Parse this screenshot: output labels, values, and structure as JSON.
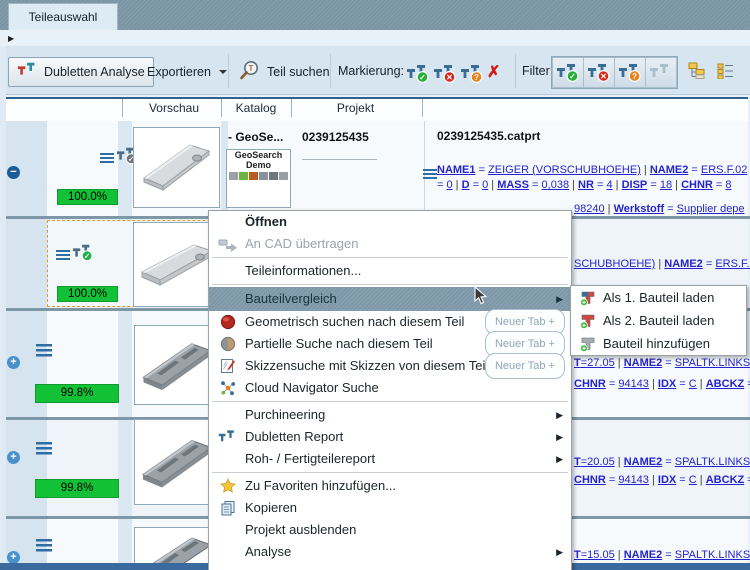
{
  "window": {
    "tab_title": "Teileauswahl"
  },
  "colors": {
    "accent_steel": "#7c95a5",
    "badge_green": "#12c135",
    "link_blue": "#2424cc",
    "selection_orange": "#df9a33"
  },
  "toolbar": {
    "dubletten_analyse_label": "Dubletten Analyse",
    "exportieren_label": "Exportieren",
    "teil_suchen_label": "Teil suchen",
    "markierung_label": "Markierung:",
    "filter_label": "Filter:",
    "clear_mark_symbol": "✗",
    "mark_buttons": [
      {
        "name": "mark-accepted-icon",
        "symbol": "✓",
        "color": "#27ae38"
      },
      {
        "name": "mark-rejected-icon",
        "symbol": "✕",
        "color": "#d5281e"
      },
      {
        "name": "mark-question-icon",
        "symbol": "?",
        "color": "#e8821e"
      }
    ],
    "filter_buttons": [
      {
        "name": "filter-accepted-button",
        "symbol": "✓",
        "color": "#27ae38",
        "disabled": false
      },
      {
        "name": "filter-rejected-button",
        "symbol": "✕",
        "color": "#d5281e",
        "disabled": false
      },
      {
        "name": "filter-question-button",
        "symbol": "?",
        "color": "#e8821e",
        "disabled": false
      },
      {
        "name": "filter-all-button",
        "symbol": "",
        "color": "",
        "disabled": true
      }
    ]
  },
  "table": {
    "headers": [
      "Vorschau",
      "Katalog",
      "Projekt"
    ]
  },
  "rows": [
    {
      "match": "100.0%",
      "katalog": "- GeoSe...",
      "katalog_card_line1": "GeoSearch",
      "katalog_card_line2": "Demo",
      "projekt": "0239125435",
      "file": "0239125435.catprt",
      "line1": [
        {
          "t": "NAME1",
          "b": 1,
          "u": 1
        },
        {
          "t": " = "
        },
        {
          "t": "ZEIGER (VORSCHUBHOEHE)",
          "u": 1
        },
        {
          "t": " | ",
          "d": 1
        },
        {
          "t": "NAME2",
          "b": 1,
          "u": 1
        },
        {
          "t": " = "
        },
        {
          "t": "ERS.F.02",
          "u": 1
        }
      ],
      "line2": [
        {
          "t": "= "
        },
        {
          "t": "0",
          "u": 1
        },
        {
          "t": " | ",
          "d": 1
        },
        {
          "t": "D",
          "b": 1,
          "u": 1
        },
        {
          "t": " = "
        },
        {
          "t": "0",
          "u": 1
        },
        {
          "t": " | ",
          "d": 1
        },
        {
          "t": "MASS",
          "b": 1,
          "u": 1
        },
        {
          "t": " = "
        },
        {
          "t": "0,038",
          "u": 1
        },
        {
          "t": " | ",
          "d": 1
        },
        {
          "t": "NR",
          "b": 1,
          "u": 1
        },
        {
          "t": " = "
        },
        {
          "t": "4",
          "u": 1
        },
        {
          "t": " | ",
          "d": 1
        },
        {
          "t": "DISP",
          "b": 1,
          "u": 1
        },
        {
          "t": " = "
        },
        {
          "t": "18",
          "u": 1
        },
        {
          "t": " | ",
          "d": 1
        },
        {
          "t": "CHNR",
          "b": 1,
          "u": 1
        },
        {
          "t": " = "
        },
        {
          "t": "8",
          "u": 1
        }
      ],
      "line3": [
        {
          "t": "98240",
          "u": 1
        },
        {
          "t": " | ",
          "d": 1
        },
        {
          "t": "Werkstoff",
          "b": 1,
          "u": 1
        },
        {
          "t": " = "
        },
        {
          "t": "Supplier depe",
          "u": 1
        }
      ]
    },
    {
      "match": "100.0%",
      "line1": [
        {
          "t": "SCHUBHOEHE)",
          "u": 1
        },
        {
          "t": " | ",
          "d": 1
        },
        {
          "t": "NAME2",
          "b": 1,
          "u": 1
        },
        {
          "t": " = "
        },
        {
          "t": "ERS.F.0",
          "u": 1
        }
      ]
    },
    {
      "match": "99.8%",
      "line1": [
        {
          "t": "T",
          "b": 1,
          "u": 1
        },
        {
          "t": "=",
          "u": 1
        },
        {
          "t": "27.05",
          "u": 1
        },
        {
          "t": " | ",
          "d": 1
        },
        {
          "t": "NAME2",
          "b": 1,
          "u": 1
        },
        {
          "t": " = "
        },
        {
          "t": "SPALTK.LINKS",
          "u": 1
        }
      ],
      "line2": [
        {
          "t": "CHNR",
          "b": 1,
          "u": 1
        },
        {
          "t": " = "
        },
        {
          "t": "94143",
          "u": 1
        },
        {
          "t": " | ",
          "d": 1
        },
        {
          "t": "IDX",
          "b": 1,
          "u": 1
        },
        {
          "t": " = "
        },
        {
          "t": "C",
          "u": 1
        },
        {
          "t": " | ",
          "d": 1
        },
        {
          "t": "ABCKZ",
          "b": 1,
          "u": 1
        },
        {
          "t": " ="
        }
      ]
    },
    {
      "match": "99.8%",
      "line1": [
        {
          "t": "T",
          "b": 1,
          "u": 1
        },
        {
          "t": "=",
          "u": 1
        },
        {
          "t": "20.05",
          "u": 1
        },
        {
          "t": " | ",
          "d": 1
        },
        {
          "t": "NAME2",
          "b": 1,
          "u": 1
        },
        {
          "t": " = "
        },
        {
          "t": "SPALTK.LINKS",
          "u": 1
        }
      ],
      "line2": [
        {
          "t": "CHNR",
          "b": 1,
          "u": 1
        },
        {
          "t": " = "
        },
        {
          "t": "94143",
          "u": 1
        },
        {
          "t": " | ",
          "d": 1
        },
        {
          "t": "IDX",
          "b": 1,
          "u": 1
        },
        {
          "t": " = "
        },
        {
          "t": "C",
          "u": 1
        },
        {
          "t": " | ",
          "d": 1
        },
        {
          "t": "ABCKZ",
          "b": 1,
          "u": 1
        },
        {
          "t": " ="
        }
      ]
    },
    {
      "line1": [
        {
          "t": "T",
          "b": 1,
          "u": 1
        },
        {
          "t": "=",
          "u": 1
        },
        {
          "t": "15.05",
          "u": 1
        },
        {
          "t": " | ",
          "d": 1
        },
        {
          "t": "NAME2",
          "b": 1,
          "u": 1
        },
        {
          "t": " = "
        },
        {
          "t": "SPALTK.LINKS",
          "u": 1
        }
      ]
    }
  ],
  "context_menu": {
    "new_tab_label": "Neuer Tab +",
    "items": [
      {
        "label": "Öffnen",
        "bold": true
      },
      {
        "label": "An CAD übertragen",
        "icon": "cad-transfer",
        "disabled": true
      },
      {
        "sep": true
      },
      {
        "label": "Teileinformationen..."
      },
      {
        "sep": true
      },
      {
        "label": "Bauteilvergleich",
        "highlighted": true,
        "arrow": true
      },
      {
        "label": "Geometrisch suchen nach diesem Teil",
        "icon": "geometric-search",
        "newtab": true
      },
      {
        "label": "Partielle Suche nach diesem Teil",
        "icon": "partial-search",
        "newtab": true
      },
      {
        "label": "Skizzensuche mit Skizzen von diesem Teil",
        "icon": "sketch-search",
        "newtab": true
      },
      {
        "label": "Cloud Navigator Suche",
        "icon": "cloud-navigator"
      },
      {
        "sep": true
      },
      {
        "label": "Purchineering",
        "arrow": true
      },
      {
        "label": "Dubletten Report",
        "icon": "dubletten-report",
        "arrow": true
      },
      {
        "label": "Roh- / Fertigteilereport",
        "arrow": true
      },
      {
        "sep": true
      },
      {
        "label": "Zu Favoriten hinzufügen...",
        "icon": "favorite-star"
      },
      {
        "label": "Kopieren",
        "icon": "copy"
      },
      {
        "label": "Projekt ausblenden"
      },
      {
        "label": "Analyse",
        "arrow": true
      }
    ]
  },
  "submenu": {
    "items": [
      {
        "label": "Als 1. Bauteil laden",
        "icon": "part-1"
      },
      {
        "label": "Als 2. Bauteil laden",
        "icon": "part-2"
      },
      {
        "label": "Bauteil hinzufügen",
        "icon": "part-add"
      }
    ]
  }
}
